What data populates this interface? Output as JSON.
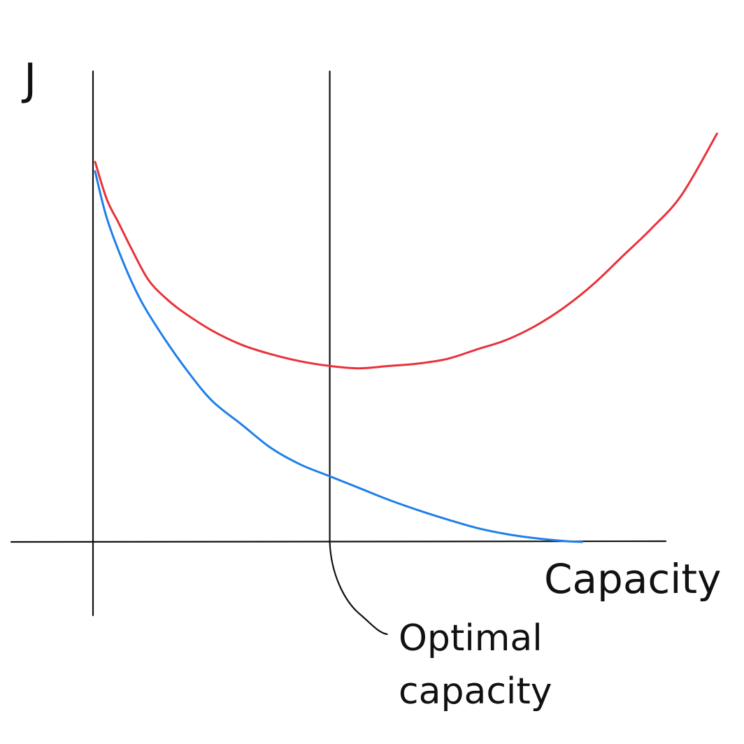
{
  "chart_data": {
    "type": "line",
    "style": "hand-drawn sketch",
    "ylabel": "J",
    "xlabel": "Capacity",
    "annotation": {
      "text_lines": [
        "Optimal",
        "capacity"
      ],
      "x": 0.4
    },
    "xlim": [
      0,
      1
    ],
    "ylim": [
      0,
      1
    ],
    "grid": false,
    "legend": "none",
    "series": [
      {
        "color": "#e8323a",
        "x": [
          0.0,
          0.02,
          0.04,
          0.06,
          0.09,
          0.12,
          0.15,
          0.2,
          0.25,
          0.3,
          0.35,
          0.4,
          0.45,
          0.5,
          0.55,
          0.6,
          0.65,
          0.7,
          0.75,
          0.8,
          0.85,
          0.9,
          0.95,
          1.0,
          1.06
        ],
        "y": [
          0.81,
          0.73,
          0.68,
          0.63,
          0.56,
          0.52,
          0.49,
          0.45,
          0.42,
          0.4,
          0.385,
          0.375,
          0.37,
          0.375,
          0.38,
          0.39,
          0.41,
          0.43,
          0.46,
          0.5,
          0.55,
          0.61,
          0.67,
          0.74,
          0.87
        ]
      },
      {
        "color": "#1f7fe8",
        "x": [
          0.0,
          0.02,
          0.05,
          0.08,
          0.12,
          0.16,
          0.2,
          0.25,
          0.3,
          0.35,
          0.4,
          0.45,
          0.5,
          0.55,
          0.6,
          0.65,
          0.7,
          0.75,
          0.8,
          0.83
        ],
        "y": [
          0.79,
          0.69,
          0.59,
          0.51,
          0.43,
          0.36,
          0.3,
          0.25,
          0.2,
          0.165,
          0.14,
          0.115,
          0.09,
          0.068,
          0.048,
          0.03,
          0.017,
          0.008,
          0.002,
          0.0
        ]
      }
    ]
  }
}
